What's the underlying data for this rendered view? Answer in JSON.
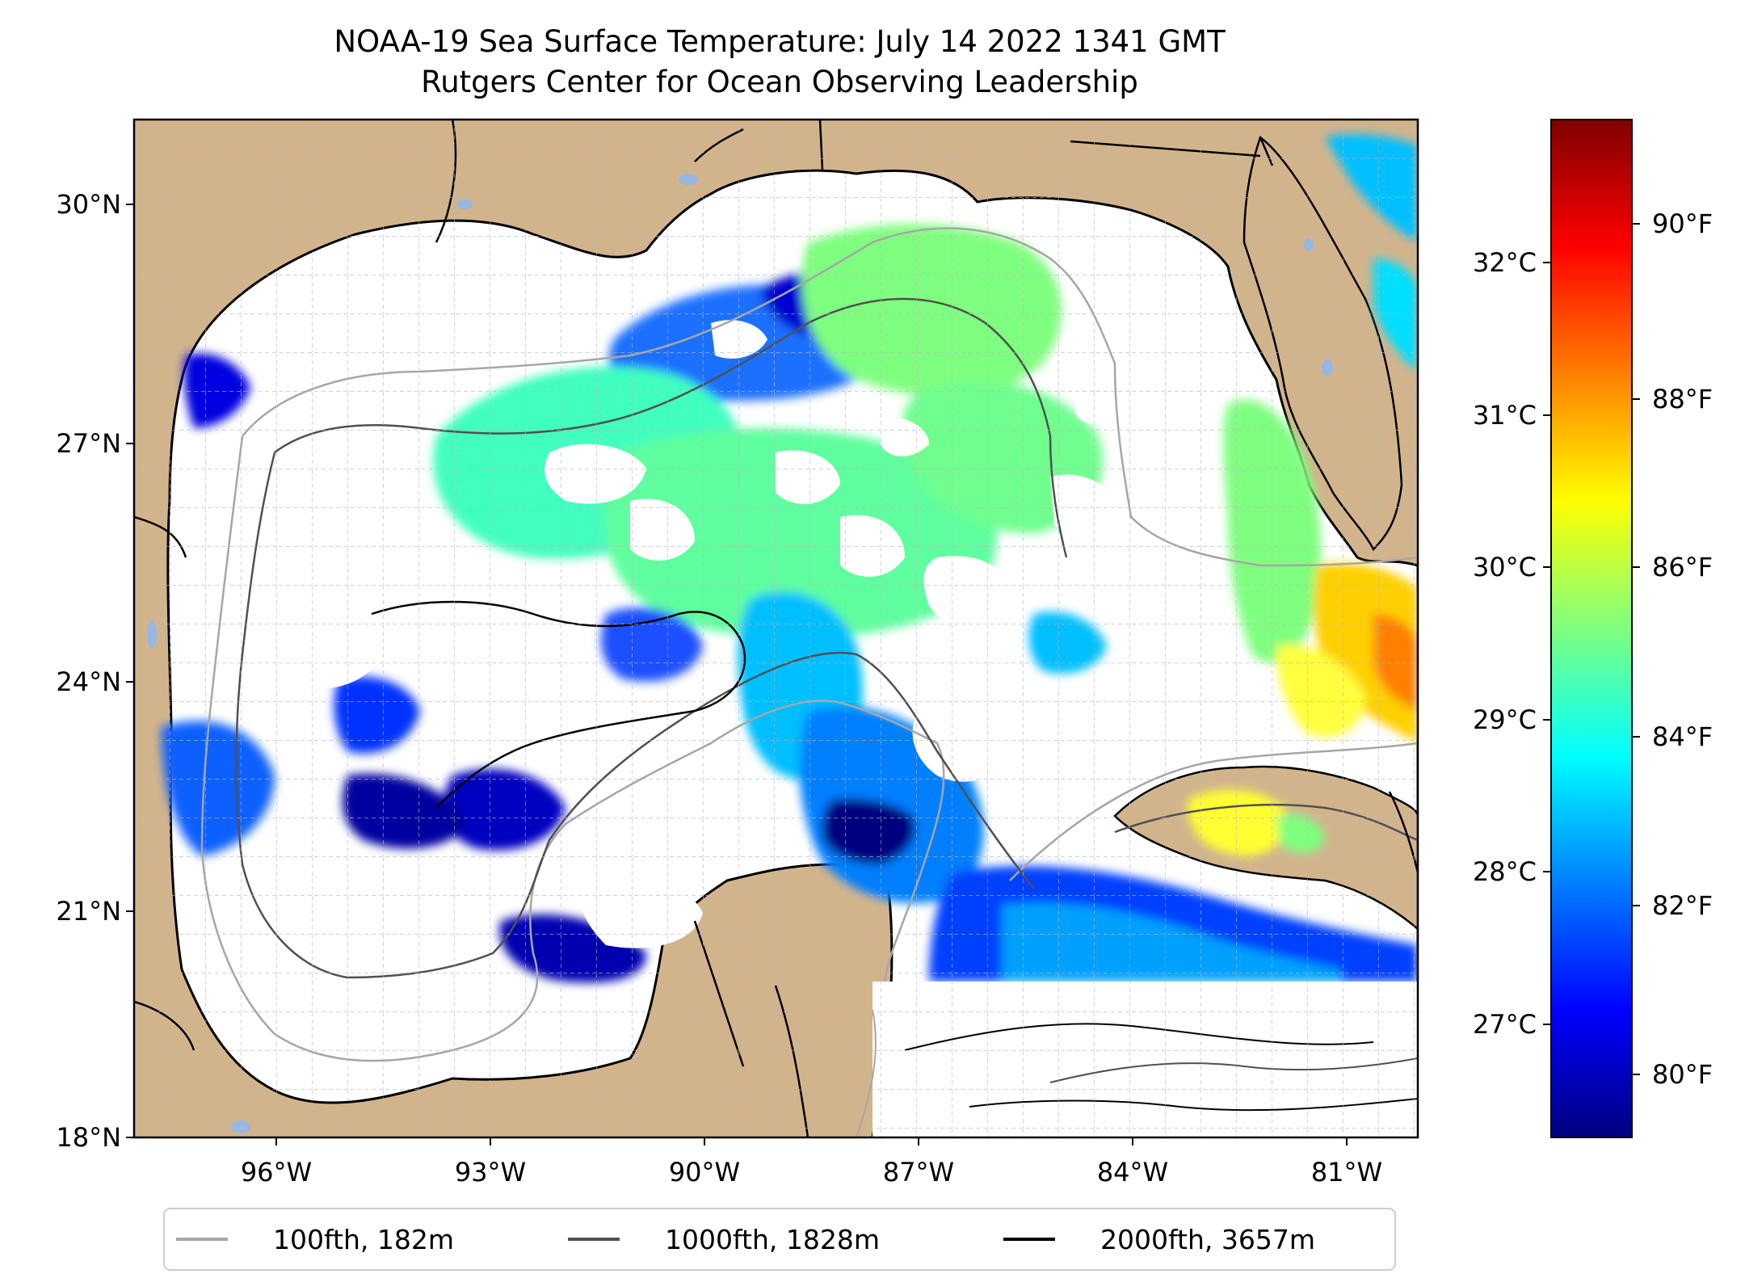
{
  "title": {
    "line1": "NOAA-19 Sea Surface Temperature: July 14 2022 1341 GMT",
    "line2": "Rutgers Center for Ocean Observing Leadership"
  },
  "lat_ticks": [
    "30°N",
    "27°N",
    "24°N",
    "21°N",
    "18°N"
  ],
  "lon_ticks": [
    "96°W",
    "93°W",
    "90°W",
    "87°W",
    "84°W",
    "81°W"
  ],
  "colorbar": {
    "celsius": [
      "32°C",
      "31°C",
      "30°C",
      "29°C",
      "28°C",
      "27°C"
    ],
    "fahrenheit": [
      "90°F",
      "88°F",
      "86°F",
      "84°F",
      "82°F",
      "80°F"
    ],
    "colors": [
      "#00007f",
      "#0000ff",
      "#007fff",
      "#00ffff",
      "#7fff7f",
      "#ffff00",
      "#ff7f00",
      "#ff0000",
      "#7f0000"
    ]
  },
  "legend": {
    "items": [
      {
        "label": "100fth, 182m",
        "color": "#a6a6a6"
      },
      {
        "label": "1000fth, 1828m",
        "color": "#505050"
      },
      {
        "label": "2000fth, 3657m",
        "color": "#000000"
      }
    ]
  },
  "colors": {
    "land": "#d2b48c",
    "no_data": "#ffffff",
    "lakes": "#97b6e1"
  }
}
